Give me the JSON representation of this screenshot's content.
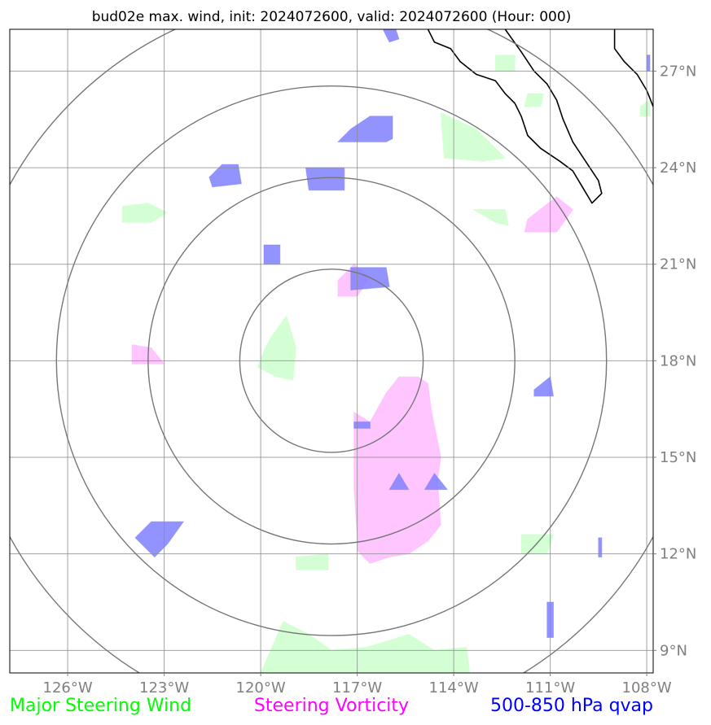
{
  "chart_data": {
    "type": "map",
    "title": "bud02e max. wind, init: 2024072600, valid: 2024072600 (Hour: 000)",
    "lon_ticks": [
      -126,
      -123,
      -120,
      -117,
      -114,
      -111,
      -108
    ],
    "lon_tick_labels": [
      "126°W",
      "123°W",
      "120°W",
      "117°W",
      "114°W",
      "111°W",
      "108°W"
    ],
    "lat_ticks": [
      27,
      24,
      21,
      18,
      15,
      12,
      9
    ],
    "lat_tick_labels": [
      "27°N",
      "24°N",
      "21°N",
      "18°N",
      "15°N",
      "12°N",
      "9°N"
    ],
    "lon_range": [
      -127.8,
      -107.8
    ],
    "lat_range": [
      8.3,
      28.3
    ],
    "grid": true,
    "range_rings_center": [
      -117.8,
      18.0
    ],
    "range_rings_radius_deg": [
      2.85,
      5.7,
      8.55,
      11.4
    ],
    "legend": [
      {
        "label": "Major Steering Wind",
        "color": "#00ff00"
      },
      {
        "label": "Steering Vorticity",
        "color": "#ff00ff"
      },
      {
        "label": "500-850 hPa qvap",
        "color": "#0000ff"
      }
    ],
    "layers": {
      "steering_wind": {
        "color": "#ccffcc",
        "polygons": [
          [
            [
              -124.3,
              22.8
            ],
            [
              -123.5,
              22.9
            ],
            [
              -122.9,
              22.6
            ],
            [
              -123.4,
              22.3
            ],
            [
              -124.3,
              22.3
            ]
          ],
          [
            [
              -119.7,
              18.7
            ],
            [
              -119.2,
              19.4
            ],
            [
              -118.9,
              18.4
            ],
            [
              -119.0,
              17.4
            ],
            [
              -119.5,
              17.5
            ],
            [
              -120.1,
              17.8
            ],
            [
              -119.9,
              18.3
            ]
          ],
          [
            [
              -114.4,
              25.7
            ],
            [
              -113.3,
              25.2
            ],
            [
              -112.4,
              24.3
            ],
            [
              -113.1,
              24.2
            ],
            [
              -114.3,
              24.3
            ]
          ],
          [
            [
              -112.7,
              27.5
            ],
            [
              -112.1,
              27.5
            ],
            [
              -112.1,
              27.0
            ],
            [
              -112.7,
              27.0
            ]
          ],
          [
            [
              -111.7,
              26.3
            ],
            [
              -111.2,
              26.3
            ],
            [
              -111.3,
              25.9
            ],
            [
              -111.8,
              25.9
            ]
          ],
          [
            [
              -113.4,
              22.7
            ],
            [
              -112.4,
              22.7
            ],
            [
              -112.3,
              22.2
            ],
            [
              -112.7,
              22.3
            ]
          ],
          [
            [
              -111.9,
              12.6
            ],
            [
              -110.9,
              12.6
            ],
            [
              -111.1,
              12.0
            ],
            [
              -111.9,
              12.0
            ]
          ],
          [
            [
              -118.9,
              11.9
            ],
            [
              -117.9,
              12.0
            ],
            [
              -117.9,
              11.5
            ],
            [
              -118.9,
              11.5
            ]
          ],
          [
            [
              -120.0,
              8.3
            ],
            [
              -119.3,
              9.9
            ],
            [
              -118.5,
              9.5
            ],
            [
              -117.8,
              9.0
            ],
            [
              -116.7,
              9.1
            ],
            [
              -115.4,
              9.5
            ],
            [
              -114.6,
              9.0
            ],
            [
              -113.6,
              9.1
            ],
            [
              -113.5,
              8.3
            ]
          ],
          [
            [
              -108.2,
              25.9
            ],
            [
              -107.9,
              26.1
            ],
            [
              -107.9,
              25.6
            ],
            [
              -108.2,
              25.6
            ]
          ]
        ]
      },
      "steering_vorticity": {
        "color": "#ffbbff",
        "polygons": [
          [
            [
              -117.6,
              20.5
            ],
            [
              -117.1,
              21.0
            ],
            [
              -116.6,
              20.6
            ],
            [
              -117.0,
              20.0
            ],
            [
              -117.6,
              20.0
            ]
          ],
          [
            [
              -124.0,
              18.5
            ],
            [
              -123.4,
              18.4
            ],
            [
              -123.0,
              17.9
            ],
            [
              -124.0,
              17.9
            ]
          ],
          [
            [
              -111.8,
              22.0
            ],
            [
              -110.8,
              22.0
            ],
            [
              -110.3,
              22.7
            ],
            [
              -110.8,
              23.1
            ],
            [
              -111.7,
              22.4
            ]
          ],
          [
            [
              -117.1,
              16.4
            ],
            [
              -116.6,
              16.1
            ],
            [
              -116.1,
              17.0
            ],
            [
              -115.7,
              17.5
            ],
            [
              -115.1,
              17.5
            ],
            [
              -114.8,
              17.3
            ],
            [
              -114.7,
              16.5
            ],
            [
              -114.4,
              15.0
            ],
            [
              -114.5,
              14.3
            ],
            [
              -114.4,
              12.9
            ],
            [
              -114.8,
              12.4
            ],
            [
              -115.4,
              12.0
            ],
            [
              -116.0,
              11.9
            ],
            [
              -116.6,
              11.7
            ],
            [
              -117.0,
              12.1
            ],
            [
              -117.0,
              12.5
            ],
            [
              -117.1,
              14.0
            ]
          ]
        ]
      },
      "qvap": {
        "color": "#8080ff",
        "polygons": [
          [
            [
              -118.6,
              24.0
            ],
            [
              -117.4,
              24.0
            ],
            [
              -117.4,
              23.3
            ],
            [
              -118.5,
              23.3
            ]
          ],
          [
            [
              -121.2,
              24.1
            ],
            [
              -120.7,
              24.1
            ],
            [
              -120.6,
              23.5
            ],
            [
              -121.5,
              23.4
            ],
            [
              -121.6,
              23.7
            ]
          ],
          [
            [
              -117.2,
              25.2
            ],
            [
              -116.6,
              25.6
            ],
            [
              -115.9,
              25.6
            ],
            [
              -115.9,
              24.9
            ],
            [
              -116.1,
              24.8
            ],
            [
              -117.6,
              24.8
            ]
          ],
          [
            [
              -119.9,
              21.6
            ],
            [
              -119.4,
              21.6
            ],
            [
              -119.4,
              21.0
            ],
            [
              -119.9,
              21.0
            ]
          ],
          [
            [
              -117.2,
              20.9
            ],
            [
              -116.1,
              20.9
            ],
            [
              -116.0,
              20.3
            ],
            [
              -117.2,
              20.2
            ]
          ],
          [
            [
              -111.5,
              17.1
            ],
            [
              -111.0,
              17.5
            ],
            [
              -110.9,
              16.9
            ],
            [
              -111.5,
              16.9
            ]
          ],
          [
            [
              -116.2,
              28.3
            ],
            [
              -115.8,
              28.3
            ],
            [
              -115.7,
              28.0
            ],
            [
              -116.0,
              27.9
            ]
          ],
          [
            [
              -123.4,
              13.0
            ],
            [
              -122.4,
              13.0
            ],
            [
              -122.9,
              12.3
            ],
            [
              -123.3,
              11.9
            ],
            [
              -123.9,
              12.5
            ]
          ],
          [
            [
              -117.1,
              16.1
            ],
            [
              -116.6,
              16.1
            ],
            [
              -116.6,
              15.9
            ],
            [
              -117.1,
              15.9
            ]
          ],
          [
            [
              -115.7,
              14.5
            ],
            [
              -115.4,
              14.0
            ],
            [
              -116.0,
              14.0
            ]
          ],
          [
            [
              -114.6,
              14.5
            ],
            [
              -114.2,
              14.0
            ],
            [
              -114.9,
              14.0
            ]
          ],
          [
            [
              -111.1,
              10.5
            ],
            [
              -110.9,
              10.5
            ],
            [
              -110.9,
              9.4
            ],
            [
              -111.1,
              9.4
            ]
          ],
          [
            [
              -109.5,
              12.5
            ],
            [
              -109.4,
              12.5
            ],
            [
              -109.4,
              11.9
            ],
            [
              -109.5,
              11.9
            ]
          ],
          [
            [
              -108.0,
              27.5
            ],
            [
              -107.9,
              27.5
            ],
            [
              -107.9,
              27.0
            ],
            [
              -108.0,
              27.0
            ]
          ]
        ]
      }
    },
    "coastline": [
      [
        -114.8,
        28.3
      ],
      [
        -114.6,
        27.9
      ],
      [
        -114.1,
        27.7
      ],
      [
        -113.8,
        27.3
      ],
      [
        -113.3,
        26.9
      ],
      [
        -112.7,
        26.7
      ],
      [
        -112.4,
        26.3
      ],
      [
        -112.1,
        26.0
      ],
      [
        -111.9,
        25.6
      ],
      [
        -111.7,
        25.0
      ],
      [
        -111.3,
        24.6
      ],
      [
        -110.7,
        24.2
      ],
      [
        -110.3,
        23.9
      ],
      [
        -110.0,
        23.4
      ],
      [
        -109.7,
        22.9
      ],
      [
        -109.4,
        23.2
      ],
      [
        -109.5,
        23.6
      ],
      [
        -109.9,
        24.2
      ],
      [
        -110.3,
        24.8
      ],
      [
        -110.6,
        25.5
      ],
      [
        -110.8,
        26.1
      ],
      [
        -111.1,
        26.6
      ],
      [
        -111.5,
        27.0
      ],
      [
        -111.9,
        27.6
      ],
      [
        -112.4,
        28.3
      ]
    ],
    "coastline_east": [
      [
        -109.0,
        28.3
      ],
      [
        -109.0,
        27.7
      ],
      [
        -108.7,
        27.3
      ],
      [
        -108.3,
        26.9
      ],
      [
        -108.0,
        26.4
      ],
      [
        -107.8,
        25.9
      ]
    ]
  }
}
